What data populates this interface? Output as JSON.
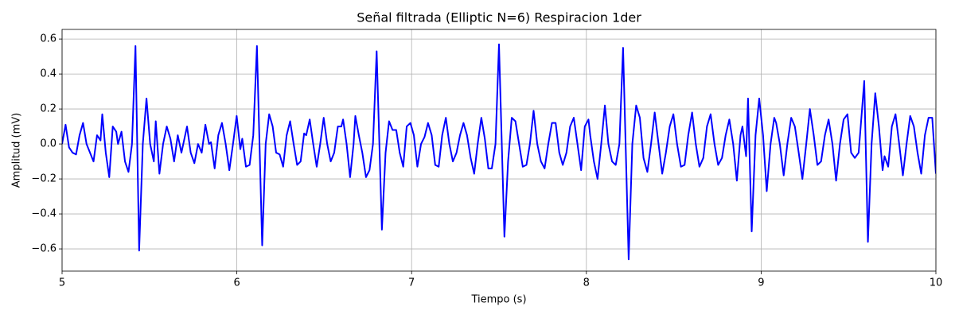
{
  "chart_data": {
    "type": "line",
    "title": "Señal filtrada (Elliptic N=6) Respiracion 1der",
    "x_label": "Tiempo (s)",
    "y_label": "Amplitud (mV)",
    "color": "blue",
    "grid": true,
    "xlim": [
      5,
      10
    ],
    "ylim": [
      -0.727,
      0.655
    ],
    "xticks": [
      5,
      6,
      7,
      8,
      9,
      10
    ],
    "yticks": [
      {
        "value": -0.6,
        "label": "−0.6"
      },
      {
        "value": -0.4,
        "label": "−0.4"
      },
      {
        "value": -0.2,
        "label": "−0.2"
      },
      {
        "value": 0,
        "label": "0.0"
      },
      0.2,
      0.4,
      0.6
    ],
    "x": [
      5.0,
      5.02,
      5.04,
      5.06,
      5.08,
      5.1,
      5.12,
      5.14,
      5.16,
      5.18,
      5.2,
      5.22,
      5.23,
      5.25,
      5.27,
      5.29,
      5.31,
      5.32,
      5.34,
      5.36,
      5.38,
      5.4,
      5.42,
      5.441,
      5.462,
      5.483,
      5.504,
      5.525,
      5.536,
      5.557,
      5.578,
      5.599,
      5.62,
      5.641,
      5.662,
      5.683,
      5.715,
      5.736,
      5.757,
      5.778,
      5.799,
      5.82,
      5.841,
      5.852,
      5.873,
      5.894,
      5.915,
      5.936,
      5.957,
      5.978,
      5.999,
      6.02,
      6.031,
      6.052,
      6.073,
      6.094,
      6.115,
      6.145,
      6.165,
      6.185,
      6.205,
      6.225,
      6.245,
      6.265,
      6.285,
      6.305,
      6.325,
      6.345,
      6.365,
      6.385,
      6.397,
      6.417,
      6.437,
      6.457,
      6.477,
      6.497,
      6.517,
      6.537,
      6.557,
      6.578,
      6.598,
      6.608,
      6.628,
      6.648,
      6.668,
      6.678,
      6.698,
      6.718,
      6.739,
      6.759,
      6.779,
      6.8,
      6.83,
      6.851,
      6.871,
      6.891,
      6.912,
      6.932,
      6.952,
      6.972,
      6.993,
      7.013,
      7.033,
      7.054,
      7.074,
      7.094,
      7.115,
      7.135,
      7.155,
      7.175,
      7.196,
      7.216,
      7.236,
      7.257,
      7.277,
      7.297,
      7.317,
      7.338,
      7.358,
      7.378,
      7.399,
      7.419,
      7.439,
      7.459,
      7.48,
      7.5,
      7.531,
      7.552,
      7.573,
      7.594,
      7.615,
      7.636,
      7.657,
      7.677,
      7.698,
      7.719,
      7.74,
      7.761,
      7.782,
      7.803,
      7.824,
      7.845,
      7.865,
      7.886,
      7.907,
      7.928,
      7.949,
      7.97,
      7.991,
      8.012,
      8.022,
      8.043,
      8.064,
      8.085,
      8.106,
      8.126,
      8.147,
      8.168,
      8.189,
      8.21,
      8.242,
      8.263,
      8.285,
      8.306,
      8.327,
      8.349,
      8.37,
      8.391,
      8.413,
      8.434,
      8.455,
      8.477,
      8.498,
      8.519,
      8.541,
      8.562,
      8.583,
      8.605,
      8.626,
      8.647,
      8.669,
      8.69,
      8.711,
      8.733,
      8.754,
      8.776,
      8.797,
      8.818,
      8.84,
      8.861,
      8.882,
      8.893,
      8.914,
      8.925,
      8.946,
      8.968,
      8.989,
      9.011,
      9.032,
      9.054,
      9.075,
      9.086,
      9.107,
      9.129,
      9.15,
      9.172,
      9.193,
      9.215,
      9.236,
      9.258,
      9.279,
      9.301,
      9.322,
      9.343,
      9.365,
      9.386,
      9.408,
      9.429,
      9.451,
      9.472,
      9.494,
      9.515,
      9.536,
      9.558,
      9.59,
      9.611,
      9.632,
      9.653,
      9.674,
      9.695,
      9.706,
      9.727,
      9.748,
      9.769,
      9.79,
      9.811,
      9.832,
      9.853,
      9.874,
      9.895,
      9.916,
      9.937,
      9.958,
      9.979,
      10.0
    ],
    "values": [
      0.0,
      0.11,
      -0.02,
      -0.05,
      -0.06,
      0.05,
      0.12,
      0.0,
      -0.05,
      -0.1,
      0.05,
      0.02,
      0.17,
      -0.05,
      -0.19,
      0.1,
      0.07,
      0.0,
      0.07,
      -0.1,
      -0.16,
      0.0,
      0.56,
      -0.61,
      0.0,
      0.26,
      0.0,
      -0.1,
      0.13,
      -0.17,
      0.0,
      0.1,
      0.03,
      -0.1,
      0.05,
      -0.05,
      0.1,
      -0.05,
      -0.11,
      0.0,
      -0.05,
      0.11,
      0.0,
      0.01,
      -0.14,
      0.05,
      0.12,
      0.0,
      -0.15,
      0.0,
      0.16,
      -0.03,
      0.03,
      -0.13,
      -0.12,
      0.05,
      0.56,
      -0.58,
      0.0,
      0.17,
      0.1,
      -0.05,
      -0.06,
      -0.13,
      0.05,
      0.13,
      0.0,
      -0.12,
      -0.1,
      0.06,
      0.05,
      0.14,
      0.0,
      -0.13,
      0.0,
      0.15,
      0.0,
      -0.1,
      -0.05,
      0.1,
      0.1,
      0.14,
      0.0,
      -0.19,
      0.0,
      0.16,
      0.05,
      -0.05,
      -0.19,
      -0.15,
      0.0,
      0.53,
      -0.49,
      -0.05,
      0.13,
      0.08,
      0.08,
      -0.05,
      -0.13,
      0.1,
      0.12,
      0.05,
      -0.13,
      0.0,
      0.04,
      0.12,
      0.05,
      -0.12,
      -0.13,
      0.05,
      0.15,
      0.0,
      -0.1,
      -0.05,
      0.05,
      0.12,
      0.05,
      -0.08,
      -0.17,
      0.0,
      0.15,
      0.03,
      -0.14,
      -0.14,
      0.0,
      0.57,
      -0.53,
      -0.1,
      0.15,
      0.13,
      0.0,
      -0.13,
      -0.12,
      0.0,
      0.19,
      0.0,
      -0.1,
      -0.14,
      0.0,
      0.12,
      0.12,
      -0.05,
      -0.12,
      -0.05,
      0.1,
      0.15,
      0.0,
      -0.15,
      0.1,
      0.14,
      0.05,
      -0.1,
      -0.2,
      0.0,
      0.22,
      0.0,
      -0.1,
      -0.12,
      0.0,
      0.55,
      -0.66,
      0.0,
      0.22,
      0.15,
      -0.08,
      -0.16,
      0.0,
      0.18,
      0.0,
      -0.17,
      -0.05,
      0.1,
      0.17,
      0.0,
      -0.13,
      -0.12,
      0.05,
      0.18,
      0.0,
      -0.13,
      -0.08,
      0.1,
      0.17,
      0.0,
      -0.12,
      -0.08,
      0.05,
      0.14,
      0.0,
      -0.21,
      0.05,
      0.1,
      -0.07,
      0.26,
      -0.5,
      0.05,
      0.26,
      0.05,
      -0.27,
      0.0,
      0.15,
      0.12,
      0.0,
      -0.18,
      0.0,
      0.15,
      0.1,
      -0.05,
      -0.2,
      0.0,
      0.2,
      0.05,
      -0.12,
      -0.1,
      0.05,
      0.14,
      0.0,
      -0.21,
      0.0,
      0.14,
      0.17,
      -0.05,
      -0.08,
      -0.05,
      0.36,
      -0.56,
      0.0,
      0.29,
      0.1,
      -0.15,
      -0.07,
      -0.13,
      0.1,
      0.17,
      0.0,
      -0.18,
      0.0,
      0.16,
      0.1,
      -0.05,
      -0.17,
      0.05,
      0.15,
      0.15,
      -0.17
    ]
  }
}
